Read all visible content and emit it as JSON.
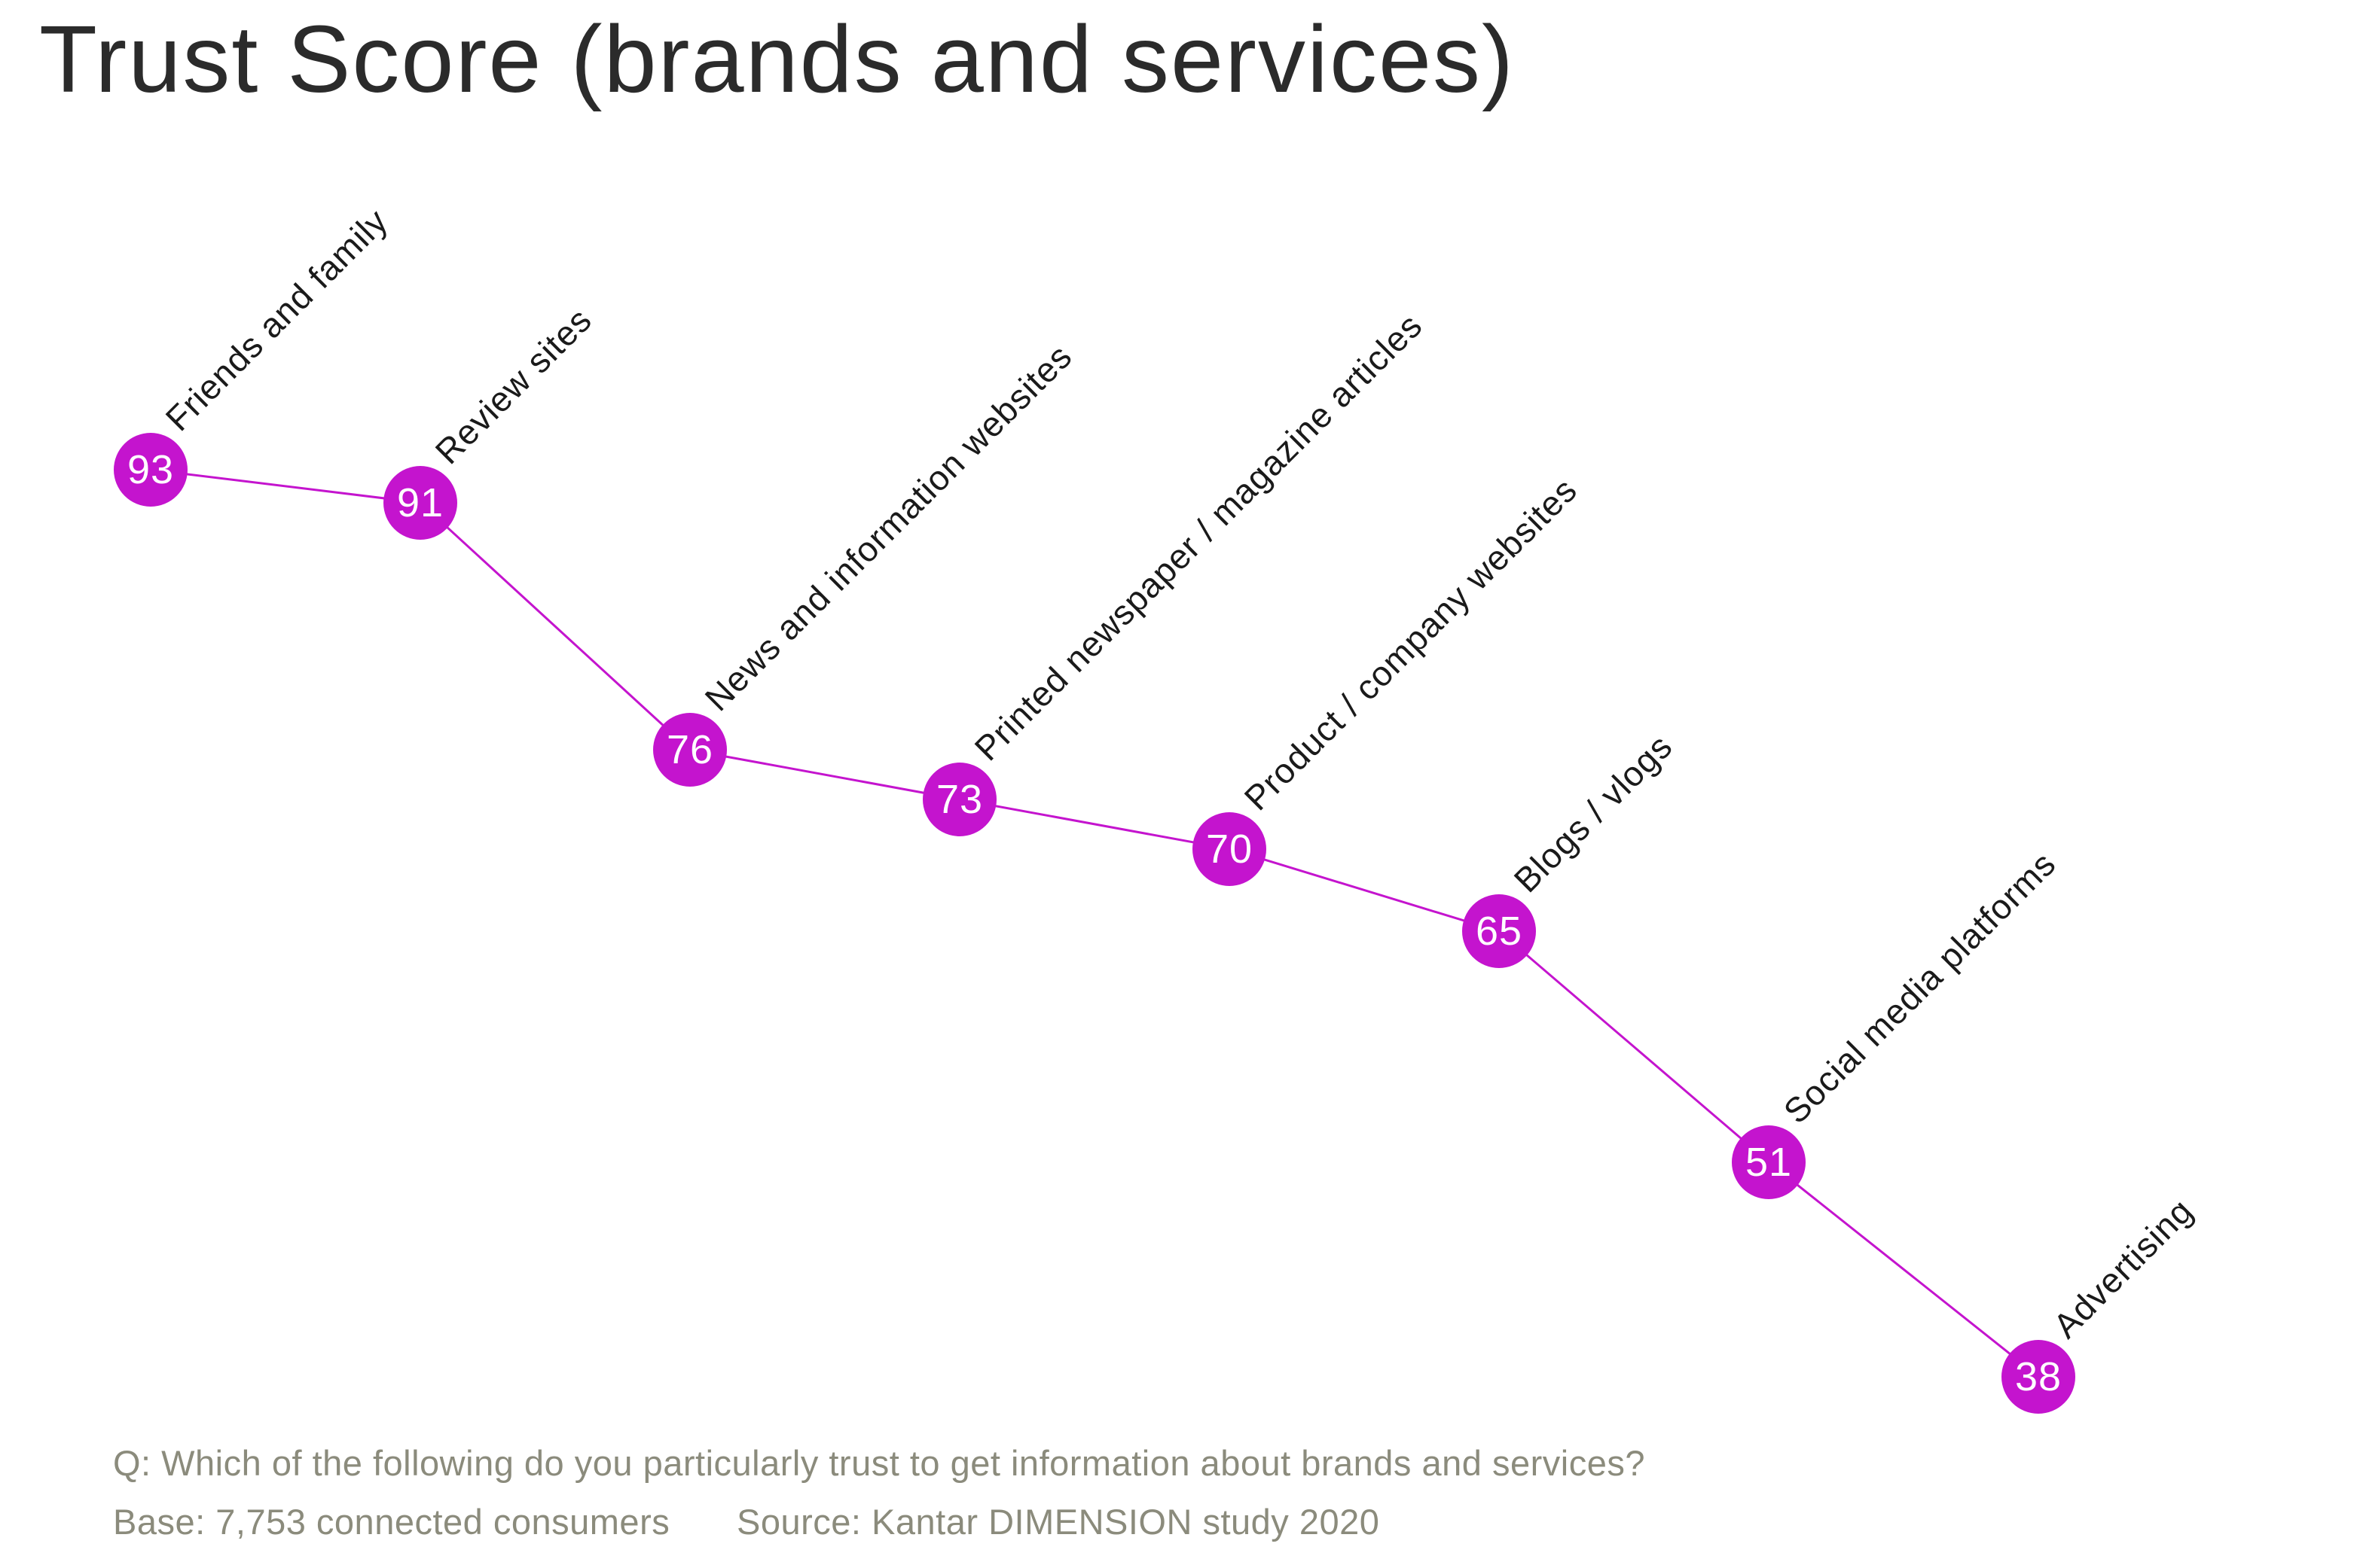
{
  "title": "Trust Score (brands and services)",
  "chart_data": {
    "type": "line",
    "title": "Trust Score (brands and services)",
    "categories": [
      "Friends and family",
      "Review sites",
      "News and information websites",
      "Printed newspaper / magazine articles",
      "Product / company websites",
      "Blogs / vlogs",
      "Social media platforms",
      "Advertising"
    ],
    "values": [
      93,
      91,
      76,
      73,
      70,
      65,
      51,
      38
    ],
    "xlabel": "",
    "ylabel": "",
    "grid": false,
    "axes_visible": false,
    "legend": "none",
    "marker": "filled-circle-with-value-inside",
    "category_label_rotation_deg": 45,
    "point_value_labels": "inside-markers"
  },
  "colors": {
    "accent": "#C414CE",
    "marker_fill": "#C414CE",
    "connector_line": "#C414CE",
    "marker_value_text": "#FFFFFF",
    "category_label_text": "#1A1A1A",
    "title_text": "#2B2B2B",
    "footnote_text": "#8B8B7C",
    "background": "#FFFFFF"
  },
  "footnotes": {
    "question": "Q: Which of the following do you particularly trust to get information about brands and services?",
    "base": "Base: 7,753 connected consumers",
    "source": "Source: Kantar DIMENSION study 2020"
  }
}
